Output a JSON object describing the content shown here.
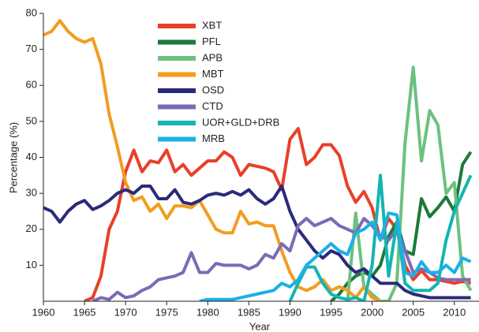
{
  "chart_data": {
    "type": "line",
    "x_label": "Year",
    "y_label": "Percentage (%)",
    "xlim": [
      1960,
      2013
    ],
    "ylim": [
      0,
      80
    ],
    "xticks": [
      1960,
      1965,
      1970,
      1975,
      1980,
      1985,
      1990,
      1995,
      2000,
      2005,
      2010
    ],
    "yticks": [
      10,
      20,
      30,
      40,
      50,
      60,
      70,
      80
    ],
    "legend": "upper left",
    "x": [
      1960,
      1961,
      1962,
      1963,
      1964,
      1965,
      1966,
      1967,
      1968,
      1969,
      1970,
      1971,
      1972,
      1973,
      1974,
      1975,
      1976,
      1977,
      1978,
      1979,
      1980,
      1981,
      1982,
      1983,
      1984,
      1985,
      1986,
      1987,
      1988,
      1989,
      1990,
      1991,
      1992,
      1993,
      1994,
      1995,
      1996,
      1997,
      1998,
      1999,
      2000,
      2001,
      2002,
      2003,
      2004,
      2005,
      2006,
      2007,
      2008,
      2009,
      2010,
      2011,
      2012
    ],
    "series": [
      {
        "name": "XBT",
        "color": "#e8402a",
        "values": [
          null,
          null,
          null,
          null,
          null,
          0,
          1,
          7,
          20,
          25,
          36,
          42,
          36,
          39,
          38.5,
          42,
          36,
          38,
          35,
          37,
          39,
          39,
          41.5,
          40,
          35,
          38,
          37.5,
          37,
          36,
          31,
          45,
          48,
          38,
          40,
          43.5,
          43.5,
          40.5,
          32,
          27.5,
          30.5,
          26,
          17,
          23,
          20,
          10,
          6,
          8.5,
          6,
          6,
          5.5,
          5,
          5.5,
          5
        ]
      },
      {
        "name": "PFL",
        "color": "#1a7a3a",
        "values": [
          null,
          null,
          null,
          null,
          null,
          null,
          null,
          null,
          null,
          null,
          null,
          null,
          null,
          null,
          null,
          null,
          null,
          null,
          null,
          null,
          null,
          null,
          null,
          null,
          null,
          null,
          null,
          null,
          null,
          null,
          null,
          null,
          null,
          null,
          null,
          0,
          2,
          5,
          7,
          8,
          7,
          10,
          18,
          22,
          14,
          13,
          28.5,
          23.5,
          26,
          29,
          25,
          38,
          41.5
        ]
      },
      {
        "name": "APB",
        "color": "#6cc17f",
        "values": [
          null,
          null,
          null,
          null,
          null,
          null,
          null,
          null,
          null,
          null,
          null,
          null,
          null,
          null,
          null,
          null,
          null,
          null,
          null,
          null,
          null,
          null,
          null,
          null,
          null,
          null,
          null,
          null,
          null,
          null,
          null,
          null,
          null,
          null,
          null,
          null,
          null,
          0,
          24.5,
          4,
          2,
          0,
          0,
          5,
          44,
          65,
          39,
          53,
          49,
          30,
          33,
          7,
          3
        ]
      },
      {
        "name": "MBT",
        "color": "#f39c1f",
        "values": [
          74,
          75,
          78,
          75,
          73,
          72,
          73,
          66,
          52,
          43,
          33,
          28,
          29,
          25,
          27,
          23,
          26.5,
          26.5,
          26,
          28,
          24,
          20,
          19,
          19,
          25,
          21.5,
          22,
          21,
          21,
          14,
          8,
          4,
          3,
          4,
          6,
          3,
          4,
          3,
          1,
          4,
          1,
          0,
          null,
          null,
          null,
          null,
          null,
          null,
          null,
          null,
          null,
          null,
          null
        ]
      },
      {
        "name": "OSD",
        "color": "#2b2a7a",
        "values": [
          26,
          25,
          22,
          25,
          27,
          28,
          25.5,
          26.5,
          28,
          30,
          31,
          30,
          32,
          32,
          28.5,
          28.5,
          31,
          27.5,
          27,
          28,
          29.5,
          30,
          29.5,
          30.5,
          29.5,
          31,
          28.5,
          27,
          28.5,
          32,
          25,
          20,
          17,
          14,
          12,
          14,
          13,
          10,
          8,
          9,
          7,
          5,
          5,
          5,
          3,
          2,
          1.5,
          1,
          1,
          1,
          1,
          1,
          1
        ]
      },
      {
        "name": "CTD",
        "color": "#7b6bb5",
        "values": [
          null,
          null,
          null,
          null,
          null,
          null,
          0,
          1,
          0.5,
          2.5,
          1,
          1.5,
          3,
          4,
          6,
          6.5,
          7,
          8,
          13.5,
          8,
          8,
          10.5,
          10,
          10,
          10,
          9,
          10,
          13,
          12,
          16,
          14,
          21,
          23,
          21,
          22,
          23,
          21,
          20,
          19,
          23,
          21,
          18,
          17,
          20,
          14,
          8,
          9,
          8,
          6.5,
          6,
          6,
          6,
          6
        ]
      },
      {
        "name": "UOR+GLD+DRB",
        "color": "#13b5b1",
        "values": [
          null,
          null,
          null,
          null,
          null,
          null,
          null,
          null,
          null,
          null,
          null,
          null,
          null,
          null,
          null,
          null,
          null,
          null,
          null,
          null,
          null,
          null,
          null,
          null,
          null,
          null,
          null,
          null,
          null,
          null,
          0,
          5,
          9.5,
          9.5,
          5,
          2,
          1,
          0.5,
          1,
          0,
          10,
          35,
          7,
          22,
          5,
          3,
          3,
          3,
          5,
          17,
          25,
          30,
          35
        ]
      },
      {
        "name": "MRB",
        "color": "#1ab0e6",
        "values": [
          null,
          null,
          null,
          null,
          null,
          null,
          null,
          null,
          null,
          null,
          null,
          null,
          null,
          null,
          null,
          null,
          null,
          null,
          null,
          0,
          0.5,
          0.5,
          0.5,
          0.5,
          1,
          1.5,
          2,
          2.5,
          3,
          5,
          4,
          6,
          10,
          12,
          14,
          16,
          14,
          13,
          19,
          20,
          22,
          17,
          24.5,
          24,
          8,
          7,
          11,
          8,
          8,
          10,
          8,
          12,
          11
        ]
      }
    ]
  }
}
